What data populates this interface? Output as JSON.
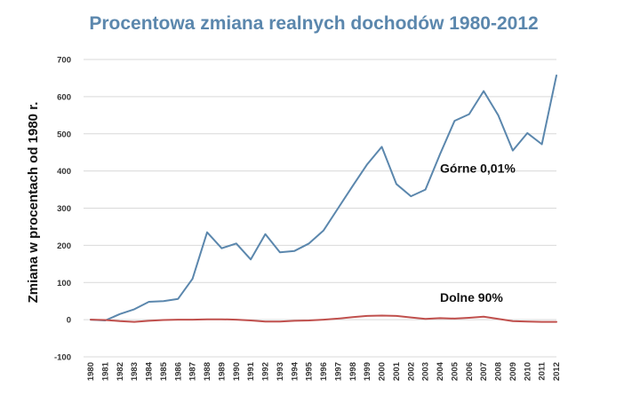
{
  "chart_data": {
    "type": "line",
    "title": "Procentowa zmiana realnych dochodów 1980-2012",
    "xlabel": "",
    "ylabel": "Zmiana w procentach od 1980 r.",
    "ylim": [
      -100,
      700
    ],
    "yticks": [
      -100,
      0,
      100,
      200,
      300,
      400,
      500,
      600,
      700
    ],
    "grid": true,
    "x": [
      "1980",
      "1981",
      "1982",
      "1983",
      "1984",
      "1985",
      "1986",
      "1987",
      "1988",
      "1989",
      "1990",
      "1991",
      "1992",
      "1993",
      "1994",
      "1995",
      "1996",
      "1997",
      "1998",
      "1999",
      "2000",
      "2001",
      "2002",
      "2003",
      "2004",
      "2005",
      "2006",
      "2007",
      "2008",
      "2009",
      "2010",
      "2011",
      "2012"
    ],
    "series": [
      {
        "name": "Górne 0,01%",
        "color": "#5b87ad",
        "values": [
          0,
          -2,
          15,
          28,
          48,
          50,
          56,
          110,
          235,
          192,
          205,
          162,
          230,
          181,
          185,
          205,
          240,
          300,
          360,
          418,
          465,
          365,
          332,
          350,
          445,
          535,
          553,
          615,
          550,
          455,
          502,
          472,
          657
        ]
      },
      {
        "name": "Dolne 90%",
        "color": "#c0504d",
        "values": [
          0,
          -1,
          -4,
          -6,
          -3,
          -1,
          0,
          0,
          1,
          1,
          0,
          -2,
          -5,
          -5,
          -3,
          -2,
          0,
          3,
          7,
          10,
          11,
          10,
          6,
          2,
          4,
          3,
          5,
          8,
          2,
          -4,
          -5,
          -6,
          -6
        ]
      }
    ],
    "annotations": [
      {
        "text": "Górne 0,01%",
        "x": "2004",
        "y": 395
      },
      {
        "text": "Dolne 90%",
        "x": "2004",
        "y": 48
      }
    ],
    "title_color": "#5b87ad"
  }
}
